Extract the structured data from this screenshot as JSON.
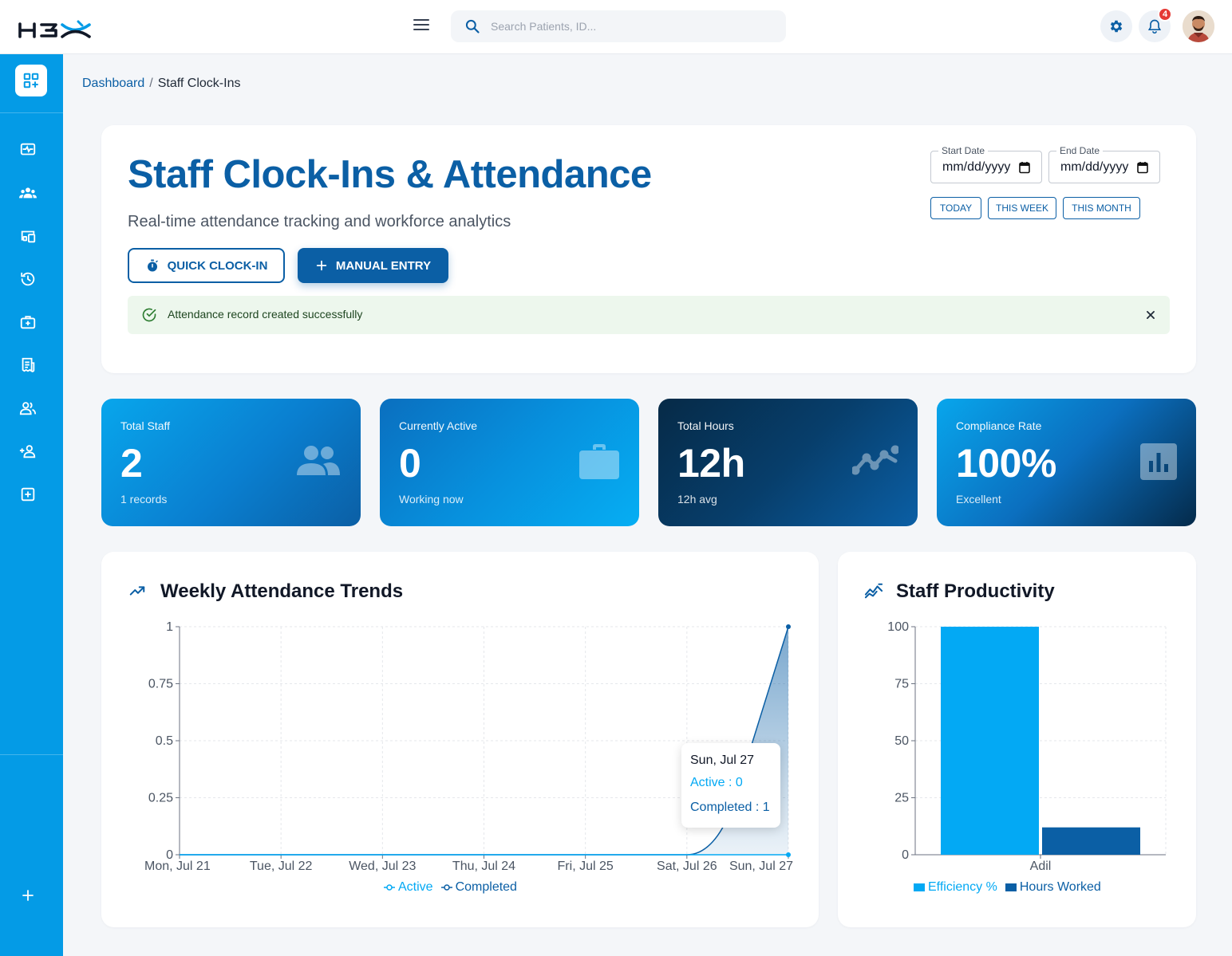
{
  "header": {
    "logo_text": "H3X",
    "search_placeholder": "Search Patients, ID...",
    "notification_count": "4"
  },
  "breadcrumb": {
    "home": "Dashboard",
    "separator": "/",
    "current": "Staff Clock-Ins"
  },
  "hero": {
    "title": "Staff Clock-Ins & Attendance",
    "subtitle": "Real-time attendance tracking and workforce analytics",
    "quick_clock_in_label": "QUICK CLOCK-IN",
    "manual_entry_label": "MANUAL ENTRY",
    "alert_message": "Attendance record created successfully",
    "start_date_label": "Start Date",
    "start_date_value": "mm/dd/yyyy",
    "end_date_label": "End Date",
    "end_date_value": "mm/dd/yyyy",
    "today_label": "TODAY",
    "this_week_label": "THIS WEEK",
    "this_month_label": "THIS MONTH"
  },
  "stats": [
    {
      "label": "Total Staff",
      "value": "2",
      "sub": "1 records",
      "icon": "people-icon"
    },
    {
      "label": "Currently Active",
      "value": "0",
      "sub": "Working now",
      "icon": "briefcase-icon"
    },
    {
      "label": "Total Hours",
      "value": "12h",
      "sub": "12h avg",
      "icon": "trend-icon"
    },
    {
      "label": "Compliance Rate",
      "value": "100%",
      "sub": "Excellent",
      "icon": "bar-chart-icon"
    }
  ],
  "colors": {
    "primary": "#0b5fa5",
    "sidebar": "#049be6",
    "active_series": "#03a9f4",
    "completed_series": "#0b5fa5",
    "success_bg": "#edf7ed",
    "badge": "#e53935"
  },
  "weekly_chart": {
    "title": "Weekly Attendance Trends",
    "tooltip": {
      "title": "Sun, Jul 27",
      "active": "Active : 0",
      "completed": "Completed : 1"
    }
  },
  "productivity_chart": {
    "title": "Staff Productivity"
  },
  "chart_data": [
    {
      "type": "area",
      "title": "Weekly Attendance Trends",
      "categories": [
        "Mon, Jul 21",
        "Tue, Jul 22",
        "Wed, Jul 23",
        "Thu, Jul 24",
        "Fri, Jul 25",
        "Sat, Jul 26",
        "Sun, Jul 27"
      ],
      "series": [
        {
          "name": "Active",
          "values": [
            0,
            0,
            0,
            0,
            0,
            0,
            0
          ]
        },
        {
          "name": "Completed",
          "values": [
            0,
            0,
            0,
            0,
            0,
            0,
            1
          ]
        }
      ],
      "yticks": [
        "0",
        "0.25",
        "0.5",
        "0.75",
        "1"
      ],
      "ylim": [
        0,
        1
      ],
      "grid": true,
      "legend": "bottom-center"
    },
    {
      "type": "bar",
      "title": "Staff Productivity",
      "categories": [
        "Adil"
      ],
      "series": [
        {
          "name": "Efficiency %",
          "values": [
            100
          ]
        },
        {
          "name": "Hours Worked",
          "values": [
            12
          ]
        }
      ],
      "yticks": [
        "0",
        "25",
        "50",
        "75",
        "100"
      ],
      "ylim": [
        0,
        100
      ],
      "grid": true,
      "legend": "bottom-center"
    }
  ],
  "sidebar": {
    "items": [
      "dashboard",
      "vitals",
      "patients",
      "devices",
      "history",
      "services",
      "reports",
      "staff",
      "add-staff",
      "medical"
    ]
  }
}
